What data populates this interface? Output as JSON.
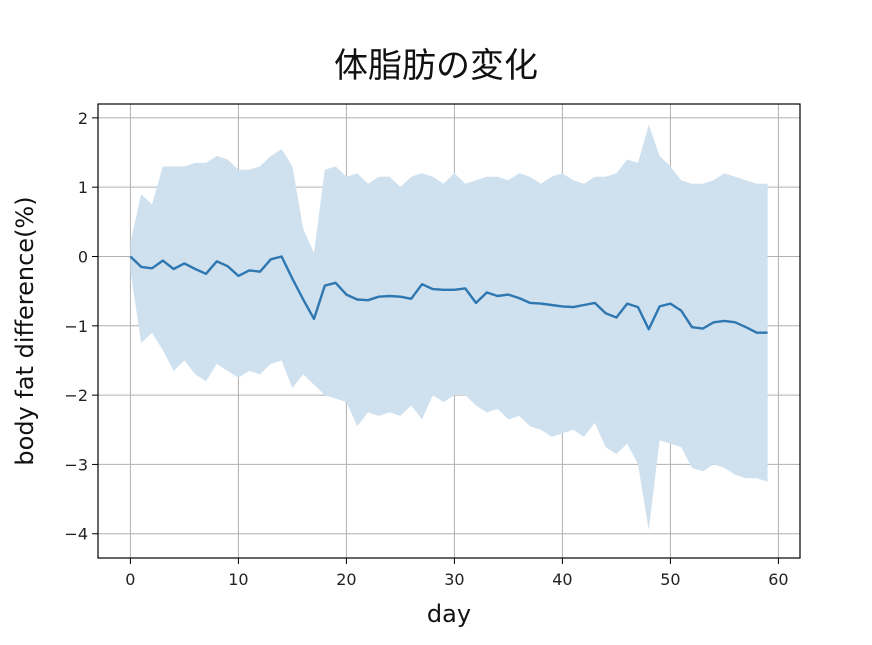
{
  "chart_data": {
    "type": "line",
    "title": "体脂肪の変化",
    "xlabel": "day",
    "ylabel": "body fat difference(%)",
    "xlim": [
      -3,
      62
    ],
    "ylim": [
      -4.35,
      2.2
    ],
    "grid": true,
    "xticks": [
      0,
      10,
      20,
      30,
      40,
      50,
      60
    ],
    "xtick_labels": [
      "0",
      "10",
      "20",
      "30",
      "40",
      "50",
      "60"
    ],
    "yticks": [
      2,
      1,
      0,
      -1,
      -2,
      -3,
      -4
    ],
    "ytick_labels": [
      "2",
      "1",
      "0",
      "−1",
      "−2",
      "−3",
      "−4"
    ],
    "colors": {
      "line": "#2e77b0",
      "band": "#cfe0ef"
    },
    "series": [
      {
        "x": [
          0,
          1,
          2,
          3,
          4,
          5,
          6,
          7,
          8,
          9,
          10,
          11,
          12,
          13,
          14,
          15,
          16,
          17,
          18,
          19,
          20,
          21,
          22,
          23,
          24,
          25,
          26,
          27,
          28,
          29,
          30,
          31,
          32,
          33,
          34,
          35,
          36,
          37,
          38,
          39,
          40,
          41,
          42,
          43,
          44,
          45,
          46,
          47,
          48,
          49,
          50,
          51,
          52,
          53,
          54,
          55,
          56,
          57,
          58,
          59
        ],
        "values": [
          0,
          -0.15,
          -0.17,
          -0.06,
          -0.18,
          -0.1,
          -0.18,
          -0.25,
          -0.07,
          -0.14,
          -0.28,
          -0.2,
          -0.22,
          -0.04,
          0,
          -0.32,
          -0.62,
          -0.9,
          -0.42,
          -0.38,
          -0.55,
          -0.62,
          -0.63,
          -0.58,
          -0.57,
          -0.58,
          -0.61,
          -0.4,
          -0.47,
          -0.48,
          -0.48,
          -0.46,
          -0.67,
          -0.52,
          -0.57,
          -0.55,
          -0.6,
          -0.67,
          -0.68,
          -0.7,
          -0.72,
          -0.73,
          -0.7,
          -0.67,
          -0.82,
          -0.88,
          -0.68,
          -0.73,
          -1.05,
          -0.72,
          -0.68,
          -0.78,
          -1.02,
          -1.04,
          -0.95,
          -0.93,
          -0.95,
          -1.02,
          -1.1,
          -1.1
        ],
        "lower": [
          -0.2,
          -1.25,
          -1.1,
          -1.35,
          -1.65,
          -1.5,
          -1.7,
          -1.8,
          -1.55,
          -1.65,
          -1.75,
          -1.65,
          -1.7,
          -1.55,
          -1.5,
          -1.9,
          -1.7,
          -1.85,
          -2,
          -2.05,
          -2.1,
          -2.45,
          -2.25,
          -2.3,
          -2.25,
          -2.3,
          -2.15,
          -2.35,
          -2,
          -2.1,
          -2,
          -2,
          -2.15,
          -2.25,
          -2.2,
          -2.35,
          -2.3,
          -2.45,
          -2.5,
          -2.6,
          -2.55,
          -2.5,
          -2.6,
          -2.4,
          -2.75,
          -2.85,
          -2.7,
          -3,
          -3.95,
          -2.65,
          -2.7,
          -2.75,
          -3.05,
          -3.1,
          -3,
          -3.05,
          -3.15,
          -3.2,
          -3.2,
          -3.25
        ],
        "upper": [
          0.2,
          0.9,
          0.75,
          1.3,
          1.3,
          1.3,
          1.35,
          1.35,
          1.45,
          1.4,
          1.25,
          1.25,
          1.3,
          1.45,
          1.55,
          1.3,
          0.4,
          0.05,
          1.25,
          1.3,
          1.15,
          1.2,
          1.05,
          1.15,
          1.15,
          1,
          1.15,
          1.2,
          1.15,
          1.05,
          1.2,
          1.05,
          1.1,
          1.15,
          1.15,
          1.1,
          1.2,
          1.15,
          1.05,
          1.15,
          1.2,
          1.1,
          1.05,
          1.15,
          1.15,
          1.2,
          1.4,
          1.35,
          1.9,
          1.45,
          1.3,
          1.1,
          1.05,
          1.05,
          1.1,
          1.2,
          1.15,
          1.1,
          1.05,
          1.05
        ]
      }
    ]
  }
}
